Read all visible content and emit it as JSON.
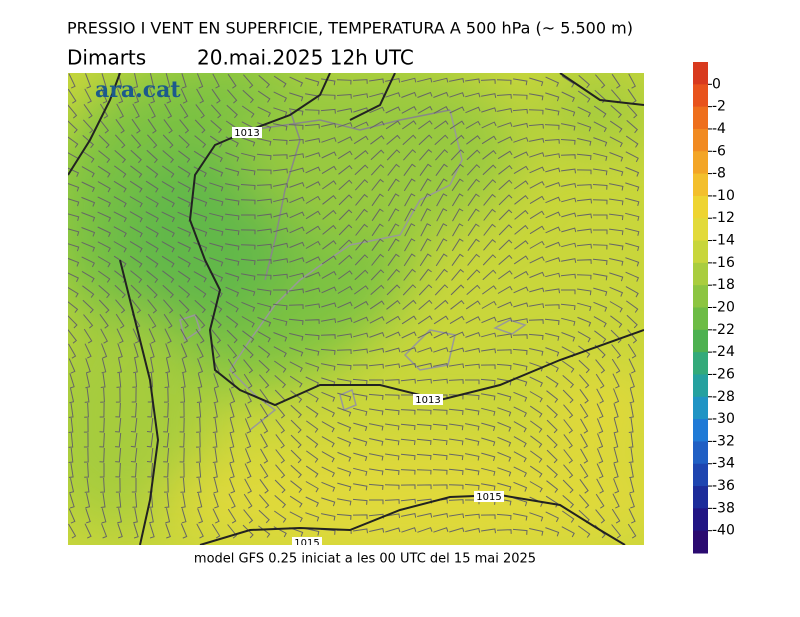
{
  "header": {
    "title": "PRESSIO I VENT EN SUPERFICIE, TEMPERATURA A 500 hPa (~ 5.500 m)",
    "day": "Dimarts",
    "date": "20.mai.2025 12h UTC"
  },
  "logo": "ara.cat",
  "map": {
    "contour_labels": [
      "1013",
      "1013",
      "1015",
      "1015"
    ]
  },
  "colorbar": {
    "ticks": [
      0,
      -2,
      -4,
      -6,
      -8,
      -10,
      -12,
      -14,
      -16,
      -18,
      -20,
      -22,
      -24,
      -26,
      -28,
      -30,
      -32,
      -34,
      -36,
      -38,
      -40
    ],
    "colors": [
      "#d83a1e",
      "#e8531c",
      "#ee6f1c",
      "#f18a21",
      "#f3a526",
      "#f3bf2c",
      "#eed431",
      "#e2da3a",
      "#c8d63b",
      "#a9cd3e",
      "#8cc541",
      "#6dbc45",
      "#4db150",
      "#33aa7a",
      "#25a19f",
      "#2094c4",
      "#1f7ad6",
      "#205fc4",
      "#1e45b0",
      "#1c2c9a",
      "#211584",
      "#2a0a70"
    ]
  },
  "footer": "model GFS 0.25 iniciat a les 00 UTC del 15 mai 2025"
}
